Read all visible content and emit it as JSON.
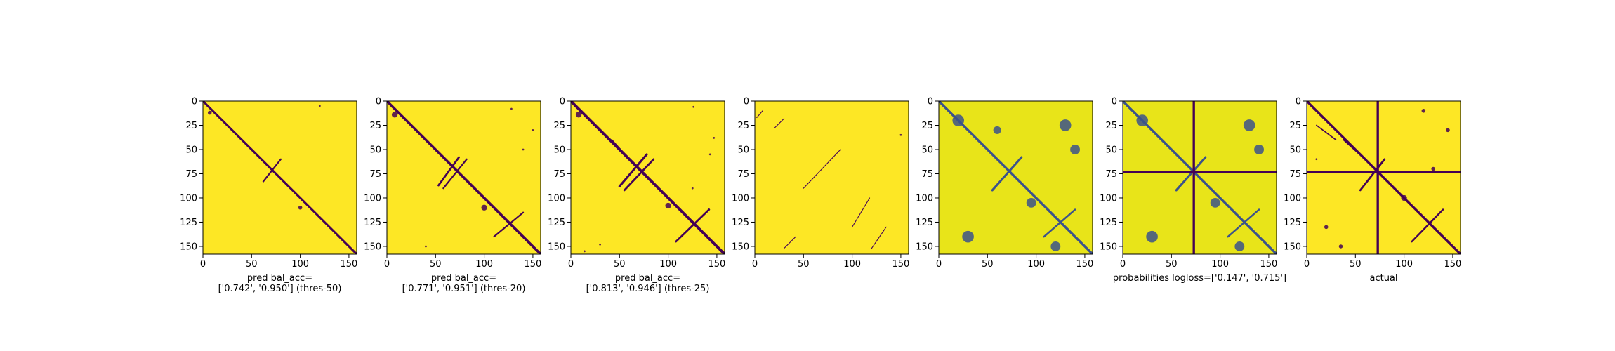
{
  "chart_data": [
    {
      "type": "heatmap",
      "xlim": [
        0,
        158
      ],
      "ylim": [
        0,
        158
      ],
      "y_inverted": true,
      "xticks": [
        "0",
        "50",
        "100",
        "150"
      ],
      "yticks": [
        "0",
        "25",
        "50",
        "75",
        "100",
        "125",
        "150"
      ],
      "caption_lines": [
        "pred bal_acc=",
        "['0.742', '0.950'] (thres-50)"
      ],
      "background_color": "#fde725",
      "mark_color": "#440154",
      "segments": [
        [
          0,
          0,
          158,
          158,
          2.2
        ],
        [
          62,
          83,
          80,
          60,
          1.6
        ]
      ],
      "blobs": [
        [
          7,
          12,
          2
        ],
        [
          120,
          5,
          1
        ],
        [
          100,
          110,
          2
        ]
      ]
    },
    {
      "type": "heatmap",
      "xlim": [
        0,
        158
      ],
      "ylim": [
        0,
        158
      ],
      "y_inverted": true,
      "xticks": [
        "0",
        "50",
        "100",
        "150"
      ],
      "yticks": [
        "0",
        "25",
        "50",
        "75",
        "100",
        "125",
        "150"
      ],
      "caption_lines": [
        "pred bal_acc=",
        "['0.771', '0.951'] (thres-20)"
      ],
      "background_color": "#fde725",
      "mark_color": "#440154",
      "segments": [
        [
          0,
          0,
          158,
          158,
          2.6
        ],
        [
          53,
          87,
          74,
          58,
          2.0
        ],
        [
          58,
          90,
          82,
          60,
          1.6
        ],
        [
          110,
          140,
          140,
          115,
          1.6
        ]
      ],
      "blobs": [
        [
          8,
          14,
          3
        ],
        [
          128,
          8,
          1
        ],
        [
          150,
          30,
          1
        ],
        [
          140,
          50,
          1
        ],
        [
          40,
          150,
          1
        ],
        [
          100,
          110,
          3
        ]
      ]
    },
    {
      "type": "heatmap",
      "xlim": [
        0,
        158
      ],
      "ylim": [
        0,
        158
      ],
      "y_inverted": true,
      "xticks": [
        "0",
        "50",
        "100",
        "150"
      ],
      "yticks": [
        "0",
        "25",
        "50",
        "75",
        "100",
        "125",
        "150"
      ],
      "caption_lines": [
        "pred bal_acc=",
        "['0.813', '0.946'] (thres-25)"
      ],
      "background_color": "#fde725",
      "mark_color": "#440154",
      "segments": [
        [
          0,
          0,
          158,
          158,
          2.8
        ],
        [
          50,
          88,
          78,
          55,
          2.2
        ],
        [
          55,
          92,
          85,
          60,
          2.0
        ],
        [
          108,
          145,
          142,
          112,
          2.0
        ],
        [
          42,
          40,
          60,
          60,
          1.4
        ]
      ],
      "blobs": [
        [
          8,
          14,
          3
        ],
        [
          126,
          6,
          1
        ],
        [
          147,
          38,
          1
        ],
        [
          143,
          55,
          1
        ],
        [
          30,
          148,
          1
        ],
        [
          14,
          155,
          1
        ],
        [
          100,
          108,
          3
        ],
        [
          125,
          90,
          1
        ]
      ]
    },
    {
      "type": "heatmap",
      "xlim": [
        0,
        158
      ],
      "ylim": [
        0,
        158
      ],
      "y_inverted": true,
      "xticks": [
        "0",
        "50",
        "100",
        "150"
      ],
      "yticks": [
        "0",
        "25",
        "50",
        "75",
        "100",
        "125",
        "150"
      ],
      "caption_lines": [],
      "background_color": "#fde725",
      "mark_color": "#440154",
      "segments": [
        [
          2,
          17,
          8,
          10,
          0.8
        ],
        [
          20,
          28,
          30,
          18,
          0.8
        ],
        [
          50,
          90,
          88,
          50,
          0.8
        ],
        [
          100,
          130,
          118,
          100,
          0.8
        ],
        [
          120,
          152,
          135,
          130,
          0.8
        ],
        [
          30,
          152,
          42,
          140,
          0.8
        ]
      ],
      "blobs": [
        [
          150,
          35,
          1
        ]
      ]
    },
    {
      "type": "heatmap",
      "xlim": [
        0,
        158
      ],
      "ylim": [
        0,
        158
      ],
      "y_inverted": true,
      "xticks": [
        "0",
        "50",
        "100",
        "150"
      ],
      "yticks": [
        "0",
        "25",
        "50",
        "75",
        "100",
        "125",
        "150"
      ],
      "caption_lines": [],
      "background_color": "#e8e419",
      "mark_color": "#3b528b",
      "segments": [
        [
          0,
          0,
          158,
          158,
          2.4
        ],
        [
          55,
          92,
          85,
          58,
          2.2
        ],
        [
          108,
          140,
          140,
          112,
          1.8
        ]
      ],
      "blobs": [
        [
          20,
          20,
          6
        ],
        [
          130,
          25,
          6
        ],
        [
          140,
          50,
          5
        ],
        [
          30,
          140,
          6
        ],
        [
          120,
          150,
          5
        ],
        [
          95,
          105,
          5
        ],
        [
          60,
          30,
          4
        ]
      ]
    },
    {
      "type": "heatmap",
      "xlim": [
        0,
        158
      ],
      "ylim": [
        0,
        158
      ],
      "y_inverted": true,
      "xticks": [
        "0",
        "50",
        "100",
        "150"
      ],
      "yticks": [
        "0",
        "25",
        "50",
        "75",
        "100",
        "125",
        "150"
      ],
      "caption_lines": [
        "probabilities logloss=['0.147', '0.715']"
      ],
      "background_color": "#e8e419",
      "mark_color": "#3b528b",
      "segments": [
        [
          0,
          0,
          158,
          158,
          2.4
        ],
        [
          55,
          92,
          85,
          58,
          2.2
        ],
        [
          108,
          140,
          140,
          112,
          1.8
        ]
      ],
      "blobs": [
        [
          20,
          20,
          6
        ],
        [
          130,
          25,
          6
        ],
        [
          140,
          50,
          5
        ],
        [
          30,
          140,
          6
        ],
        [
          120,
          150,
          5
        ],
        [
          95,
          105,
          5
        ]
      ],
      "cross_lines": [
        73
      ]
    },
    {
      "type": "heatmap",
      "xlim": [
        0,
        158
      ],
      "ylim": [
        0,
        158
      ],
      "y_inverted": true,
      "xticks": [
        "0",
        "50",
        "100",
        "150"
      ],
      "yticks": [
        "0",
        "25",
        "50",
        "75",
        "100",
        "125",
        "150"
      ],
      "caption_lines": [
        "actual"
      ],
      "background_color": "#fde725",
      "mark_color": "#440154",
      "segments": [
        [
          0,
          0,
          158,
          158,
          2.4
        ],
        [
          55,
          92,
          80,
          60,
          2.0
        ],
        [
          108,
          145,
          140,
          112,
          1.8
        ],
        [
          38,
          40,
          60,
          60,
          1.6
        ],
        [
          10,
          25,
          30,
          40,
          1.2
        ]
      ],
      "blobs": [
        [
          120,
          10,
          2
        ],
        [
          145,
          30,
          2
        ],
        [
          20,
          130,
          2
        ],
        [
          35,
          150,
          2
        ],
        [
          100,
          100,
          3
        ],
        [
          130,
          70,
          2
        ],
        [
          10,
          60,
          1
        ]
      ],
      "cross_lines": [
        73
      ]
    }
  ]
}
